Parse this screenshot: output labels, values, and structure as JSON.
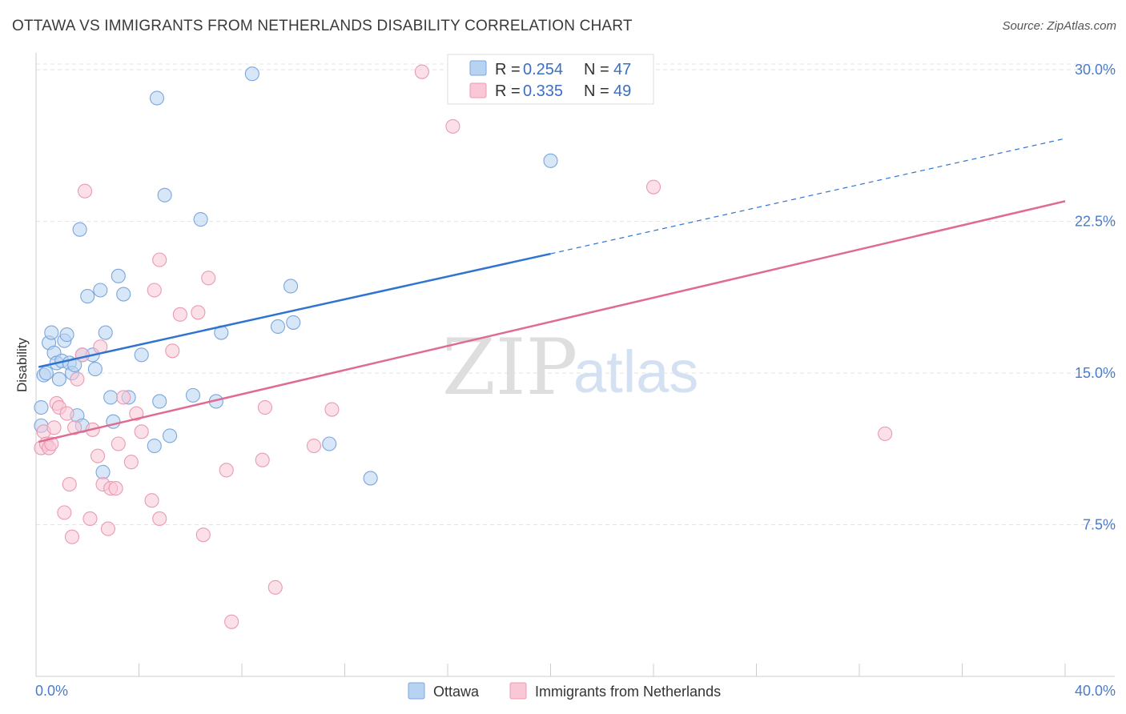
{
  "title": "OTTAWA VS IMMIGRANTS FROM NETHERLANDS DISABILITY CORRELATION CHART",
  "source": "Source: ZipAtlas.com",
  "watermark": {
    "zip": "ZIP",
    "atlas": "atlas"
  },
  "legend": {
    "r_label": "R =",
    "n_label": "N =",
    "rows": [
      {
        "r": "0.254",
        "n": "47",
        "fill": "#b8d3f2",
        "stroke": "#7aa6dd"
      },
      {
        "r": "0.335",
        "n": "49",
        "fill": "#f9c7d6",
        "stroke": "#e99ab4"
      }
    ]
  },
  "bottom_legend": [
    "Ottawa",
    "Immigrants from Netherlands"
  ],
  "chart_data": {
    "type": "scatter",
    "title": "OTTAWA VS IMMIGRANTS FROM NETHERLANDS DISABILITY CORRELATION CHART",
    "xlabel": "",
    "ylabel": "Disability",
    "xlim": [
      0,
      40
    ],
    "ylim": [
      0,
      30.6
    ],
    "x_tick_labels": [
      "0.0%",
      "40.0%"
    ],
    "y_ticks": [
      7.5,
      15.0,
      22.5,
      30.0
    ],
    "y_tick_labels": [
      "7.5%",
      "15.0%",
      "22.5%",
      "30.0%"
    ],
    "grid": true,
    "legend_position": "top-center",
    "series": [
      {
        "name": "Ottawa",
        "color": "#7aa6dd",
        "line_color": "#2f74cf",
        "r": 0.254,
        "n": 47,
        "trend": {
          "x0": 0.1,
          "y0": 15.3,
          "x1": 20.0,
          "y1": 20.9,
          "x_end": 40.0,
          "y_end": 26.6
        },
        "points": [
          [
            0.2,
            12.4
          ],
          [
            0.2,
            13.3
          ],
          [
            0.3,
            14.9
          ],
          [
            0.4,
            15.0
          ],
          [
            0.5,
            16.5
          ],
          [
            0.6,
            17.0
          ],
          [
            0.7,
            16.0
          ],
          [
            0.8,
            15.5
          ],
          [
            0.9,
            14.7
          ],
          [
            1.0,
            15.6
          ],
          [
            1.1,
            16.6
          ],
          [
            1.2,
            16.9
          ],
          [
            1.3,
            15.5
          ],
          [
            1.4,
            15.0
          ],
          [
            1.5,
            15.4
          ],
          [
            1.6,
            12.9
          ],
          [
            1.7,
            22.1
          ],
          [
            1.8,
            12.4
          ],
          [
            1.8,
            15.9
          ],
          [
            2.0,
            18.8
          ],
          [
            2.2,
            15.9
          ],
          [
            2.3,
            15.2
          ],
          [
            2.5,
            19.1
          ],
          [
            2.6,
            10.1
          ],
          [
            2.7,
            17.0
          ],
          [
            2.9,
            13.8
          ],
          [
            3.0,
            12.6
          ],
          [
            3.2,
            19.8
          ],
          [
            3.4,
            18.9
          ],
          [
            3.6,
            13.8
          ],
          [
            4.1,
            15.9
          ],
          [
            4.6,
            11.4
          ],
          [
            4.7,
            28.6
          ],
          [
            4.8,
            13.6
          ],
          [
            5.0,
            23.8
          ],
          [
            5.2,
            11.9
          ],
          [
            6.1,
            13.9
          ],
          [
            6.4,
            22.6
          ],
          [
            7.0,
            13.6
          ],
          [
            7.2,
            17.0
          ],
          [
            8.4,
            29.8
          ],
          [
            9.4,
            17.3
          ],
          [
            9.9,
            19.3
          ],
          [
            10.0,
            17.5
          ],
          [
            11.4,
            11.5
          ],
          [
            13.0,
            9.8
          ],
          [
            20.0,
            25.5
          ]
        ]
      },
      {
        "name": "Immigrants from Netherlands",
        "color": "#e99ab4",
        "line_color": "#e06b92",
        "r": 0.335,
        "n": 49,
        "trend": {
          "x0": 0.1,
          "y0": 11.6,
          "x1": 40.0,
          "y1": 23.5
        },
        "points": [
          [
            0.2,
            11.3
          ],
          [
            0.3,
            12.1
          ],
          [
            0.4,
            11.5
          ],
          [
            0.5,
            11.3
          ],
          [
            0.6,
            11.5
          ],
          [
            0.7,
            12.3
          ],
          [
            0.8,
            13.5
          ],
          [
            0.9,
            13.3
          ],
          [
            1.1,
            8.1
          ],
          [
            1.2,
            13.0
          ],
          [
            1.3,
            9.5
          ],
          [
            1.4,
            6.9
          ],
          [
            1.5,
            12.3
          ],
          [
            1.6,
            14.7
          ],
          [
            1.8,
            15.9
          ],
          [
            1.9,
            24.0
          ],
          [
            2.1,
            7.8
          ],
          [
            2.2,
            12.2
          ],
          [
            2.4,
            10.9
          ],
          [
            2.5,
            16.3
          ],
          [
            2.6,
            9.5
          ],
          [
            2.8,
            7.3
          ],
          [
            2.9,
            9.3
          ],
          [
            3.1,
            9.3
          ],
          [
            3.2,
            11.5
          ],
          [
            3.4,
            13.8
          ],
          [
            3.7,
            10.6
          ],
          [
            3.9,
            13.0
          ],
          [
            4.1,
            12.1
          ],
          [
            4.5,
            8.7
          ],
          [
            4.6,
            19.1
          ],
          [
            4.8,
            20.6
          ],
          [
            4.8,
            7.8
          ],
          [
            5.3,
            16.1
          ],
          [
            5.6,
            17.9
          ],
          [
            6.3,
            18.0
          ],
          [
            6.5,
            7.0
          ],
          [
            6.7,
            19.7
          ],
          [
            7.4,
            10.2
          ],
          [
            7.6,
            2.7
          ],
          [
            8.8,
            10.7
          ],
          [
            8.9,
            13.3
          ],
          [
            9.3,
            4.4
          ],
          [
            10.8,
            11.4
          ],
          [
            11.5,
            13.2
          ],
          [
            15.0,
            29.9
          ],
          [
            16.2,
            27.2
          ],
          [
            24.0,
            24.2
          ],
          [
            33.0,
            12.0
          ]
        ]
      }
    ]
  }
}
